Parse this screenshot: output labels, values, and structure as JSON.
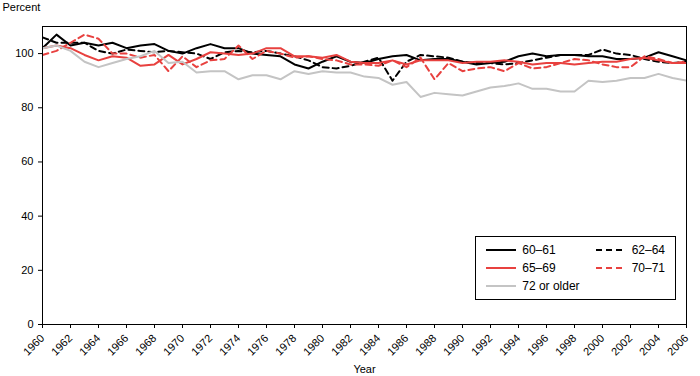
{
  "chart_data": {
    "type": "line",
    "x_label": "Year",
    "y_label": "Percent",
    "x": [
      1960,
      1961,
      1962,
      1963,
      1964,
      1965,
      1966,
      1967,
      1968,
      1969,
      1970,
      1971,
      1972,
      1973,
      1974,
      1975,
      1976,
      1977,
      1978,
      1979,
      1980,
      1981,
      1982,
      1983,
      1984,
      1985,
      1986,
      1987,
      1988,
      1989,
      1990,
      1991,
      1992,
      1993,
      1994,
      1995,
      1996,
      1997,
      1998,
      1999,
      2000,
      2001,
      2002,
      2003,
      2004,
      2005,
      2006
    ],
    "series": [
      {
        "name": "60–61",
        "color": "#000000",
        "line_style": "solid",
        "values": [
          102,
          107,
          103,
          104,
          103,
          104,
          102,
          103,
          103.5,
          101,
          100,
          102,
          103.5,
          102,
          102,
          100,
          99.5,
          99,
          96,
          94.5,
          97,
          99,
          97,
          96.5,
          98,
          99,
          99.5,
          97.5,
          98,
          98,
          97,
          96,
          96.5,
          97,
          99,
          100,
          99,
          99.5,
          99.5,
          99,
          99,
          98,
          98,
          98.5,
          100.5,
          99,
          97.5
        ]
      },
      {
        "name": "62–64",
        "color": "#000000",
        "line_style": "dashed",
        "values": [
          106,
          104,
          104,
          104,
          101,
          100,
          101.5,
          101,
          100.5,
          101,
          100.5,
          100,
          98,
          100.5,
          101,
          100.5,
          101,
          100,
          99,
          97.5,
          95,
          94.5,
          95.5,
          97,
          98.5,
          90,
          97,
          99.5,
          99,
          98.5,
          97,
          96.5,
          96.5,
          96,
          96.5,
          97.5,
          98.5,
          99.5,
          99.5,
          99.5,
          101.5,
          100,
          99.5,
          98,
          97,
          96.5,
          97
        ]
      },
      {
        "name": "65–69",
        "color": "#e8413f",
        "line_style": "solid",
        "values": [
          102,
          103,
          102,
          99.5,
          97.5,
          99,
          98.5,
          95.5,
          96,
          99.5,
          96,
          98,
          100.5,
          100,
          99.5,
          100,
          102,
          102,
          99,
          99,
          98.5,
          99.5,
          97,
          96.5,
          96.5,
          97.5,
          96,
          97.5,
          97.5,
          97.5,
          96.5,
          97,
          97,
          97.5,
          97,
          96,
          96.5,
          96.5,
          96,
          96.5,
          97,
          97,
          98,
          98.5,
          97.5,
          96.5,
          96.5
        ]
      },
      {
        "name": "70–71",
        "color": "#e8413f",
        "line_style": "dashed",
        "values": [
          99.5,
          101,
          104,
          107,
          105.5,
          100,
          100,
          98.5,
          99.5,
          93.5,
          99,
          95,
          97.5,
          98,
          103,
          98,
          101,
          100,
          98.5,
          99,
          98,
          97.5,
          96,
          96,
          95.5,
          97.5,
          95,
          98.5,
          90.5,
          96.5,
          93.5,
          94.5,
          95,
          93.5,
          96.5,
          94.5,
          95,
          96.5,
          98,
          97.5,
          96,
          95,
          95,
          99,
          98,
          96.5,
          97
        ]
      },
      {
        "name": "72 or older",
        "color": "#c4c4c4",
        "line_style": "solid",
        "values": [
          102,
          103,
          101,
          97,
          95,
          96.5,
          98,
          99,
          101,
          96.5,
          97,
          93,
          93.5,
          93.5,
          90.5,
          92,
          92,
          90.5,
          93.5,
          92.5,
          93.5,
          93,
          93,
          91.5,
          91,
          88.5,
          89.5,
          84,
          85.5,
          85,
          84.5,
          86,
          87.5,
          88,
          89,
          87,
          87,
          86,
          86,
          90,
          89.5,
          90,
          91,
          91,
          92.5,
          91,
          90
        ]
      }
    ],
    "xlim": [
      1960,
      2006
    ],
    "xticks": [
      1960,
      1962,
      1964,
      1966,
      1968,
      1970,
      1972,
      1974,
      1976,
      1978,
      1980,
      1982,
      1984,
      1986,
      1988,
      1990,
      1992,
      1994,
      1996,
      1998,
      2000,
      2002,
      2004,
      2006
    ],
    "ylim": [
      0,
      110
    ],
    "yticks": [
      0,
      20,
      40,
      60,
      80,
      100
    ],
    "grid": false,
    "legend": "bottom-right"
  }
}
